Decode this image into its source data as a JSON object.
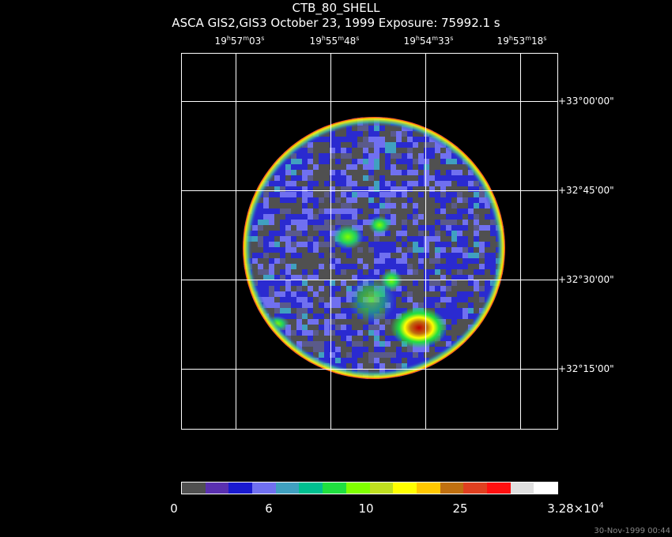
{
  "title": "CTB_80_SHELL",
  "subtitle": "ASCA GIS2,GIS3 October 23, 1999 Exposure: 75992.1 s",
  "ra_labels": [
    {
      "h": "19",
      "m": "57",
      "s": "03"
    },
    {
      "h": "19",
      "m": "55",
      "s": "48"
    },
    {
      "h": "19",
      "m": "54",
      "s": "33"
    },
    {
      "h": "19",
      "m": "53",
      "s": "18"
    }
  ],
  "dec_labels": [
    "+33°00'00\"",
    "+32°45'00\"",
    "+32°30'00\"",
    "+32°15'00\""
  ],
  "colorbar": {
    "colors": [
      "#505050",
      "#5a30b0",
      "#1a1ad0",
      "#7070f0",
      "#40a0c0",
      "#00c090",
      "#20e040",
      "#80ff00",
      "#c0e020",
      "#ffff00",
      "#ffc800",
      "#c07010",
      "#e04020",
      "#ff1010",
      "#e0e0e0",
      "#ffffff"
    ],
    "labels": [
      {
        "text": "0"
      },
      {
        "text": "6"
      },
      {
        "text": "10"
      },
      {
        "text": "25"
      },
      {
        "text": "3.28×10",
        "sup": "4"
      }
    ]
  },
  "timestamp": "30-Nov-1999 00:44"
}
